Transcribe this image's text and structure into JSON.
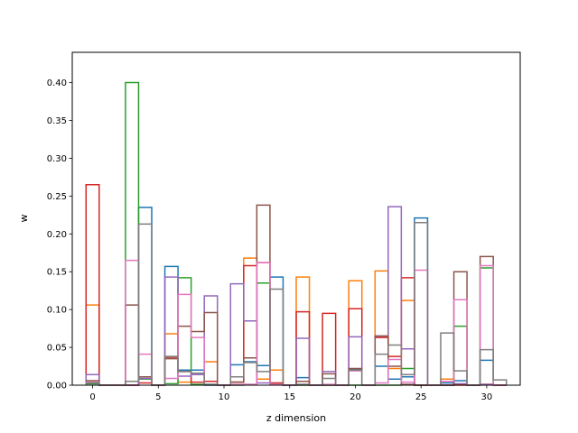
{
  "chart_data": {
    "type": "step",
    "title": "",
    "xlabel": "z dimension",
    "ylabel": "w",
    "xlim": [
      -1.55,
      32.55
    ],
    "ylim": [
      0,
      0.44
    ],
    "x_ticks": [
      0,
      5,
      10,
      15,
      20,
      25,
      30
    ],
    "x_tick_labels": [
      "0",
      "5",
      "10",
      "15",
      "20",
      "25",
      "30"
    ],
    "y_ticks": [
      0.0,
      0.05,
      0.1,
      0.15,
      0.2,
      0.25,
      0.3,
      0.35,
      0.4
    ],
    "y_tick_labels": [
      "0.00",
      "0.05",
      "0.10",
      "0.15",
      "0.20",
      "0.25",
      "0.30",
      "0.35",
      "0.40"
    ],
    "x": [
      0,
      1,
      2,
      3,
      4,
      5,
      6,
      7,
      8,
      9,
      10,
      11,
      12,
      13,
      14,
      15,
      16,
      17,
      18,
      19,
      20,
      21,
      22,
      23,
      24,
      25,
      26,
      27,
      28,
      29,
      30,
      31
    ],
    "series": [
      {
        "color": "#1f77b4",
        "values": [
          0.002,
          0,
          0,
          0,
          0.235,
          0,
          0.157,
          0.02,
          0.02,
          0,
          0,
          0.027,
          0.031,
          0.026,
          0.143,
          0,
          0.01,
          0,
          0,
          0,
          0.021,
          0,
          0.025,
          0.008,
          0.011,
          0.221,
          0,
          0.003,
          0.006,
          0,
          0.033,
          0
        ]
      },
      {
        "color": "#ff7f0e",
        "values": [
          0.106,
          0,
          0,
          0,
          0.011,
          0,
          0.068,
          0.004,
          0.001,
          0.031,
          0,
          0.004,
          0.168,
          0.008,
          0.02,
          0,
          0.143,
          0,
          0,
          0,
          0.138,
          0,
          0.151,
          0.022,
          0.112,
          0,
          0,
          0.008,
          0,
          0,
          0.001,
          0
        ]
      },
      {
        "color": "#2ca02c",
        "values": [
          0.002,
          0,
          0,
          0.4,
          0.008,
          0,
          0.002,
          0.142,
          0.001,
          0.001,
          0,
          0,
          0.001,
          0.135,
          0.001,
          0,
          0,
          0,
          0,
          0,
          0,
          0,
          0,
          0,
          0.022,
          0,
          0,
          0,
          0.078,
          0,
          0.155,
          0
        ]
      },
      {
        "color": "#d62728",
        "values": [
          0.265,
          0,
          0,
          0,
          0.003,
          0,
          0.037,
          0.018,
          0.004,
          0.005,
          0,
          0.004,
          0.158,
          0.162,
          0.003,
          0,
          0.097,
          0,
          0.095,
          0,
          0.101,
          0,
          0.063,
          0.038,
          0.142,
          0,
          0,
          0,
          0.001,
          0,
          0.001,
          0
        ]
      },
      {
        "color": "#9467bd",
        "values": [
          0.014,
          0,
          0,
          0,
          0.009,
          0,
          0.143,
          0.012,
          0.014,
          0.118,
          0,
          0.134,
          0.085,
          0.003,
          0.001,
          0,
          0.062,
          0,
          0.018,
          0,
          0.064,
          0,
          0.065,
          0.236,
          0.048,
          0,
          0,
          0,
          0.002,
          0,
          0.001,
          0
        ]
      },
      {
        "color": "#8c564b",
        "values": [
          0.006,
          0,
          0,
          0.106,
          0.011,
          0,
          0.035,
          0.078,
          0.071,
          0.096,
          0,
          0.004,
          0.036,
          0.238,
          0.001,
          0,
          0.005,
          0,
          0.015,
          0,
          0.022,
          0,
          0.065,
          0.025,
          0.001,
          0,
          0,
          0,
          0.15,
          0,
          0.17,
          0
        ]
      },
      {
        "color": "#e377c2",
        "values": [
          0.004,
          0,
          0,
          0.165,
          0.041,
          0,
          0.009,
          0.12,
          0.063,
          0.001,
          0,
          0.001,
          0.001,
          0.162,
          0.001,
          0,
          0.001,
          0,
          0.001,
          0,
          0.019,
          0,
          0.003,
          0.034,
          0.004,
          0.152,
          0,
          0.005,
          0.113,
          0,
          0.158,
          0
        ]
      },
      {
        "color": "#7f7f7f",
        "values": [
          0.003,
          0,
          0,
          0.005,
          0.213,
          0,
          0.038,
          0.018,
          0.016,
          0.001,
          0,
          0.011,
          0.03,
          0.018,
          0.127,
          0,
          0.001,
          0,
          0.009,
          0,
          0.02,
          0,
          0.041,
          0.053,
          0.014,
          0.215,
          0,
          0.069,
          0.019,
          0,
          0.047,
          0.007
        ]
      }
    ]
  }
}
